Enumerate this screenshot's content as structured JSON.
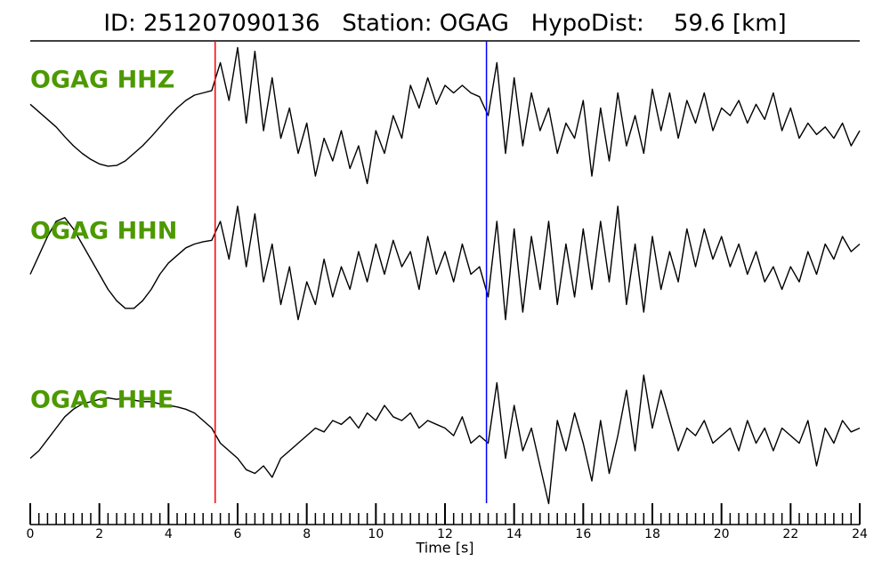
{
  "chart_data": {
    "type": "line",
    "title": "ID: 251207090136   Station: OGAG   HypoDist:    59.6 [km]",
    "xlabel": "Time [s]",
    "xlim": [
      0,
      24
    ],
    "xticks": [
      0,
      2,
      4,
      6,
      8,
      10,
      12,
      14,
      16,
      18,
      20,
      22,
      24
    ],
    "xminorticks": [
      0.25,
      0.5,
      0.75,
      1,
      1.25,
      1.5,
      1.75,
      2.25,
      2.5,
      2.75,
      3,
      3.25,
      3.5,
      3.75,
      4.25,
      4.5,
      4.75,
      5,
      5.25,
      5.5,
      5.75,
      6.25,
      6.5,
      6.75,
      7,
      7.25,
      7.5,
      7.75,
      8.25,
      8.5,
      8.75,
      9,
      9.25,
      9.5,
      9.75,
      10.25,
      10.5,
      10.75,
      11,
      11.25,
      11.5,
      11.75,
      12.25,
      12.5,
      12.75,
      13,
      13.25,
      13.5,
      13.75,
      14.25,
      14.5,
      14.75,
      15,
      15.25,
      15.5,
      15.75,
      16.25,
      16.5,
      16.75,
      17,
      17.25,
      17.5,
      17.75,
      18.25,
      18.5,
      18.75,
      19,
      19.25,
      19.5,
      19.75,
      20.25,
      20.5,
      20.75,
      21,
      21.25,
      21.5,
      21.75,
      22.25,
      22.5,
      22.75,
      23,
      23.25,
      23.5,
      23.75
    ],
    "ylim": [
      -1,
      1
    ],
    "label_color": "#4c9900",
    "markers": [
      {
        "x": 5.35,
        "color": "#ff0000"
      },
      {
        "x": 13.2,
        "color": "#0000ff"
      }
    ],
    "x": [
      0,
      0.25,
      0.5,
      0.75,
      1,
      1.25,
      1.5,
      1.75,
      2,
      2.25,
      2.5,
      2.75,
      3,
      3.25,
      3.5,
      3.75,
      4,
      4.25,
      4.5,
      4.75,
      5,
      5.25,
      5.5,
      5.75,
      6,
      6.25,
      6.5,
      6.75,
      7,
      7.25,
      7.5,
      7.75,
      8,
      8.25,
      8.5,
      8.75,
      9,
      9.25,
      9.5,
      9.75,
      10,
      10.25,
      10.5,
      10.75,
      11,
      11.25,
      11.5,
      11.75,
      12,
      12.25,
      12.5,
      12.75,
      13,
      13.25,
      13.5,
      13.75,
      14,
      14.25,
      14.5,
      14.75,
      15,
      15.25,
      15.5,
      15.75,
      16,
      16.25,
      16.5,
      16.75,
      17,
      17.25,
      17.5,
      17.75,
      18,
      18.25,
      18.5,
      18.75,
      19,
      19.25,
      19.5,
      19.75,
      20,
      20.25,
      20.5,
      20.75,
      21,
      21.25,
      21.5,
      21.75,
      22,
      22.25,
      22.5,
      22.75,
      23,
      23.25,
      23.5,
      23.75,
      24
    ],
    "series": [
      {
        "name": "OGAG HHZ",
        "color": "#000000",
        "values": [
          0.15,
          0.05,
          -0.05,
          -0.15,
          -0.28,
          -0.4,
          -0.5,
          -0.58,
          -0.64,
          -0.67,
          -0.66,
          -0.6,
          -0.5,
          -0.4,
          -0.28,
          -0.15,
          -0.02,
          0.1,
          0.2,
          0.27,
          0.3,
          0.33,
          0.7,
          0.2,
          0.9,
          -0.1,
          0.85,
          -0.2,
          0.5,
          -0.3,
          0.1,
          -0.5,
          -0.1,
          -0.8,
          -0.3,
          -0.6,
          -0.2,
          -0.7,
          -0.4,
          -0.9,
          -0.2,
          -0.5,
          0.0,
          -0.3,
          0.4,
          0.1,
          0.5,
          0.15,
          0.4,
          0.3,
          0.4,
          0.3,
          0.25,
          0.0,
          0.7,
          -0.5,
          0.5,
          -0.4,
          0.3,
          -0.2,
          0.1,
          -0.5,
          -0.1,
          -0.3,
          0.2,
          -0.8,
          0.1,
          -0.6,
          0.3,
          -0.4,
          0.0,
          -0.5,
          0.35,
          -0.2,
          0.3,
          -0.3,
          0.2,
          -0.1,
          0.3,
          -0.2,
          0.1,
          0.0,
          0.2,
          -0.1,
          0.15,
          -0.05,
          0.3,
          -0.2,
          0.1,
          -0.3,
          -0.1,
          -0.25,
          -0.15,
          -0.3,
          -0.1,
          -0.4,
          -0.2
        ]
      },
      {
        "name": "OGAG HHN",
        "color": "#000000",
        "values": [
          -0.1,
          0.15,
          0.4,
          0.6,
          0.65,
          0.5,
          0.3,
          0.1,
          -0.1,
          -0.3,
          -0.45,
          -0.55,
          -0.55,
          -0.45,
          -0.3,
          -0.1,
          0.05,
          0.15,
          0.25,
          0.3,
          0.33,
          0.35,
          0.6,
          0.1,
          0.8,
          0.0,
          0.7,
          -0.2,
          0.3,
          -0.5,
          0.0,
          -0.7,
          -0.2,
          -0.5,
          0.1,
          -0.4,
          0.0,
          -0.3,
          0.2,
          -0.2,
          0.3,
          -0.1,
          0.35,
          0.0,
          0.2,
          -0.3,
          0.4,
          -0.1,
          0.2,
          -0.2,
          0.3,
          -0.1,
          0.0,
          -0.4,
          0.6,
          -0.7,
          0.5,
          -0.6,
          0.4,
          -0.3,
          0.6,
          -0.5,
          0.3,
          -0.4,
          0.5,
          -0.3,
          0.6,
          -0.2,
          0.8,
          -0.5,
          0.3,
          -0.6,
          0.4,
          -0.3,
          0.2,
          -0.2,
          0.5,
          0.0,
          0.5,
          0.1,
          0.4,
          0.0,
          0.3,
          -0.1,
          0.2,
          -0.2,
          0.0,
          -0.3,
          0.0,
          -0.2,
          0.2,
          -0.1,
          0.3,
          0.1,
          0.4,
          0.2,
          0.3
        ]
      },
      {
        "name": "OGAG HHE",
        "color": "#000000",
        "values": [
          -0.3,
          -0.2,
          -0.05,
          0.1,
          0.25,
          0.35,
          0.42,
          0.45,
          0.48,
          0.5,
          0.48,
          0.5,
          0.47,
          0.45,
          0.45,
          0.42,
          0.4,
          0.38,
          0.35,
          0.3,
          0.2,
          0.1,
          -0.1,
          -0.2,
          -0.3,
          -0.45,
          -0.5,
          -0.4,
          -0.55,
          -0.3,
          -0.2,
          -0.1,
          0.0,
          0.1,
          0.05,
          0.2,
          0.15,
          0.25,
          0.1,
          0.3,
          0.2,
          0.4,
          0.25,
          0.2,
          0.3,
          0.1,
          0.2,
          0.15,
          0.1,
          0.0,
          0.25,
          -0.1,
          0.0,
          -0.1,
          0.7,
          -0.3,
          0.4,
          -0.2,
          0.1,
          -0.4,
          -0.9,
          0.2,
          -0.2,
          0.3,
          -0.1,
          -0.6,
          0.2,
          -0.5,
          0.0,
          0.6,
          -0.2,
          0.8,
          0.1,
          0.6,
          0.2,
          -0.2,
          0.1,
          0.0,
          0.2,
          -0.1,
          0.0,
          0.1,
          -0.2,
          0.2,
          -0.1,
          0.1,
          -0.2,
          0.1,
          0.0,
          -0.1,
          0.2,
          -0.4,
          0.1,
          -0.1,
          0.2,
          0.05,
          0.1
        ]
      }
    ]
  }
}
